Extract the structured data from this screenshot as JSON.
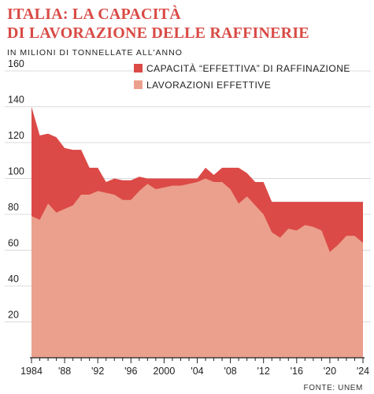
{
  "title_lines": [
    "ITALIA: LA CAPACITÀ",
    "DI LAVORAZIONE DELLE RAFFINERIE"
  ],
  "source": "FONTE: UNEM",
  "colors": {
    "capacity": "#db4a47",
    "processing": "#eba08d",
    "title": "#d94a45"
  },
  "chart_data": {
    "type": "area",
    "title": "ITALIA: LA CAPACITÀ DI LAVORAZIONE DELLE RAFFINERIE",
    "ylabel": "IN MILIONI DI TONNELLATE ALL'ANNO",
    "xlabel": "",
    "ylim": [
      0,
      160
    ],
    "xlim": [
      1984,
      2024
    ],
    "yticks": [
      20,
      40,
      60,
      80,
      100,
      120,
      140,
      160
    ],
    "xticks": [
      1984,
      1988,
      1992,
      1996,
      2000,
      2004,
      2008,
      2012,
      2016,
      2020,
      2024
    ],
    "xtick_labels": [
      "1984",
      "'88",
      "'92",
      "'96",
      "2000",
      "'04",
      "'08",
      "'12",
      "'16",
      "'20",
      "'24"
    ],
    "grid": "horizontal",
    "legend_position": "top-right",
    "x": [
      1984,
      1985,
      1986,
      1987,
      1988,
      1989,
      1990,
      1991,
      1992,
      1993,
      1994,
      1995,
      1996,
      1997,
      1998,
      1999,
      2000,
      2001,
      2002,
      2003,
      2004,
      2005,
      2006,
      2007,
      2008,
      2009,
      2010,
      2011,
      2012,
      2013,
      2014,
      2015,
      2016,
      2017,
      2018,
      2019,
      2020,
      2021,
      2022,
      2023,
      2024
    ],
    "series": [
      {
        "name": "CAPACITÀ “EFFETTIVA” DI RAFFINAZIONE",
        "values": [
          140,
          124,
          125,
          123,
          117,
          116,
          116,
          106,
          106,
          98,
          100,
          99,
          99,
          101,
          100,
          100,
          100,
          100,
          100,
          100,
          100,
          106,
          102,
          106,
          106,
          106,
          103,
          98,
          98,
          87,
          87,
          87,
          87,
          87,
          87,
          87,
          87,
          87,
          87,
          87,
          87
        ]
      },
      {
        "name": "LAVORAZIONI EFFETTIVE",
        "values": [
          79,
          77,
          86,
          81,
          83,
          85,
          91,
          91,
          93,
          92,
          91,
          88,
          88,
          93,
          97,
          94,
          95,
          96,
          96,
          97,
          98,
          100,
          98,
          98,
          94,
          86,
          90,
          85,
          80,
          70,
          67,
          72,
          71,
          74,
          73,
          71,
          59,
          63,
          68,
          68,
          64
        ]
      }
    ]
  }
}
